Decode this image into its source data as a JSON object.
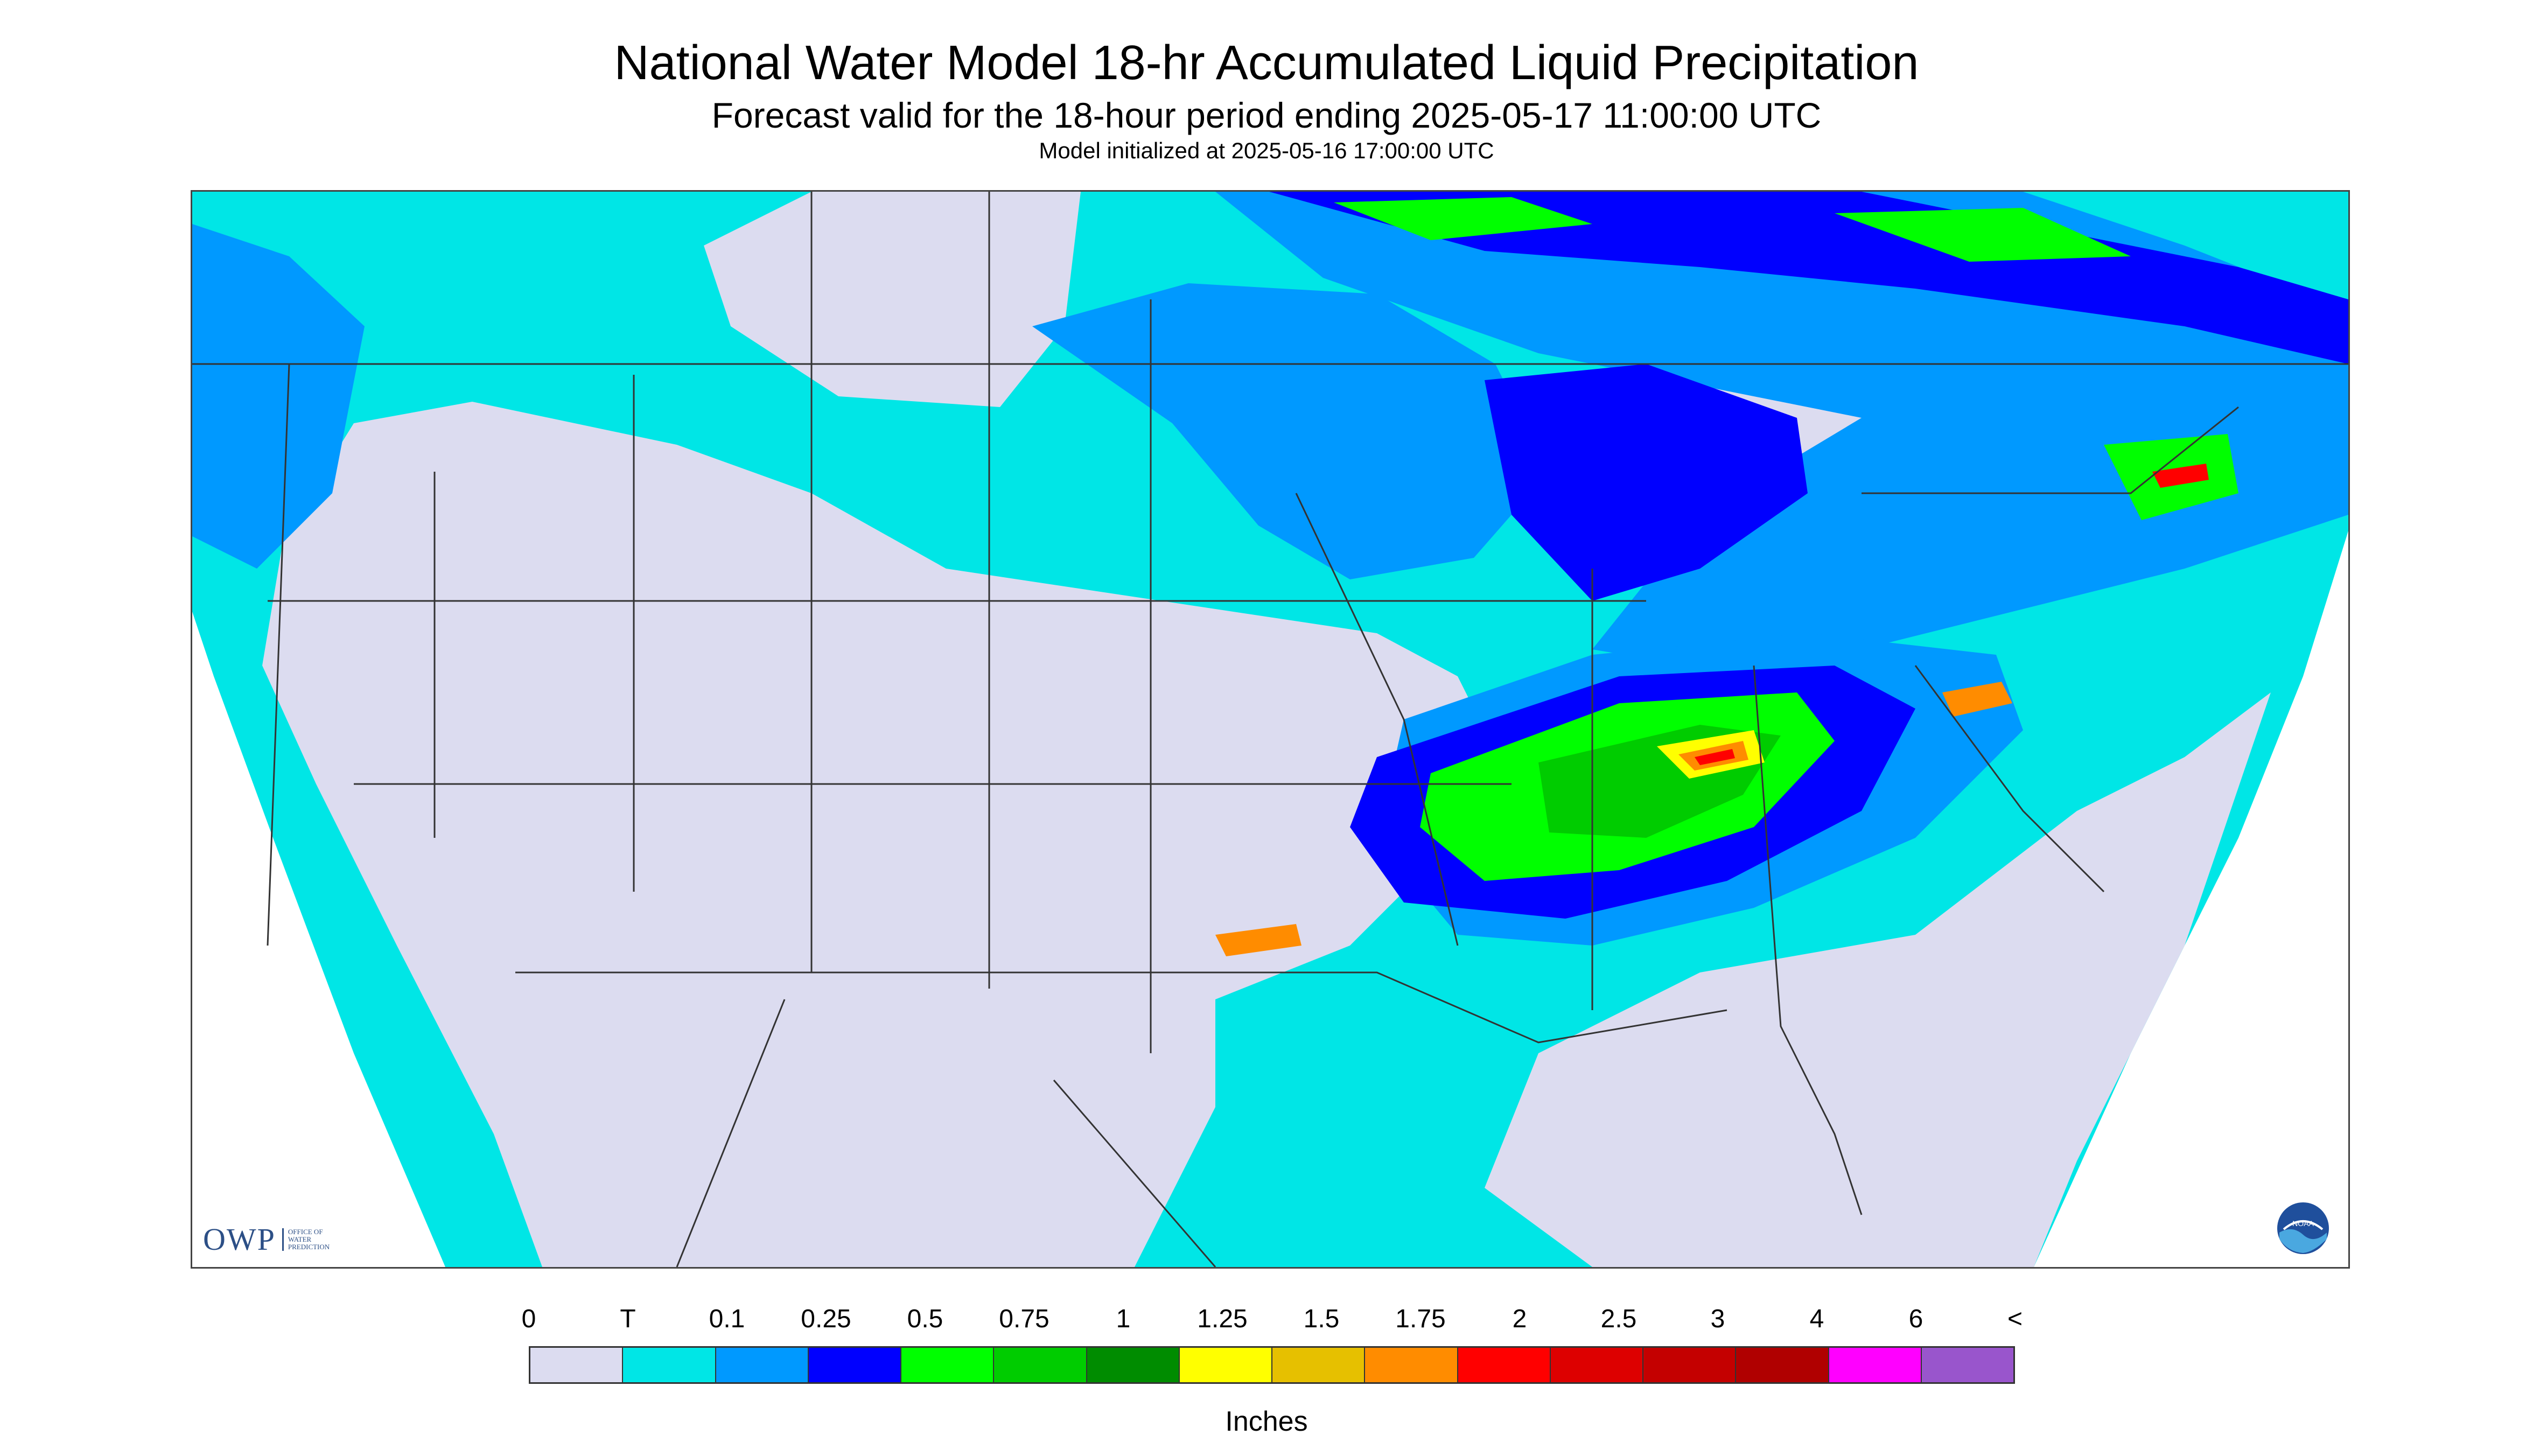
{
  "header": {
    "title": "National Water Model 18-hr Accumulated Liquid Precipitation",
    "subtitle": "Forecast valid for the 18-hour period ending 2025-05-17 11:00:00 UTC",
    "init_line": "Model initialized at 2025-05-16 17:00:00 UTC"
  },
  "logos": {
    "owp_mark": "OWP",
    "owp_text": [
      "OFFICE OF",
      "WATER",
      "PREDICTION"
    ],
    "noaa_text": "NOAA"
  },
  "legend": {
    "labels": [
      "0",
      "T",
      "0.1",
      "0.25",
      "0.5",
      "0.75",
      "1",
      "1.25",
      "1.5",
      "1.75",
      "2",
      "2.5",
      "3",
      "4",
      "6",
      "<"
    ],
    "colors": [
      "#dcdcf0",
      "#00e6e6",
      "#0099ff",
      "#0000ff",
      "#00ff00",
      "#00cc00",
      "#008c00",
      "#ffff00",
      "#e6c000",
      "#ff8c00",
      "#ff0000",
      "#dd0000",
      "#c40000",
      "#b00000",
      "#ff00ff",
      "#9955cc"
    ],
    "units": "Inches"
  },
  "map_colors": {
    "no_data": "#ffffff",
    "zero": "#dcdcf0",
    "trace": "#00e6e6",
    "light": "#0099ff",
    "moderate": "#0000ff",
    "half_inch": "#00ff00",
    "inch": "#00cc00",
    "heavy": "#ffff00",
    "very_heavy": "#ff8c00",
    "extreme": "#ff0000",
    "borders": "#333333"
  }
}
